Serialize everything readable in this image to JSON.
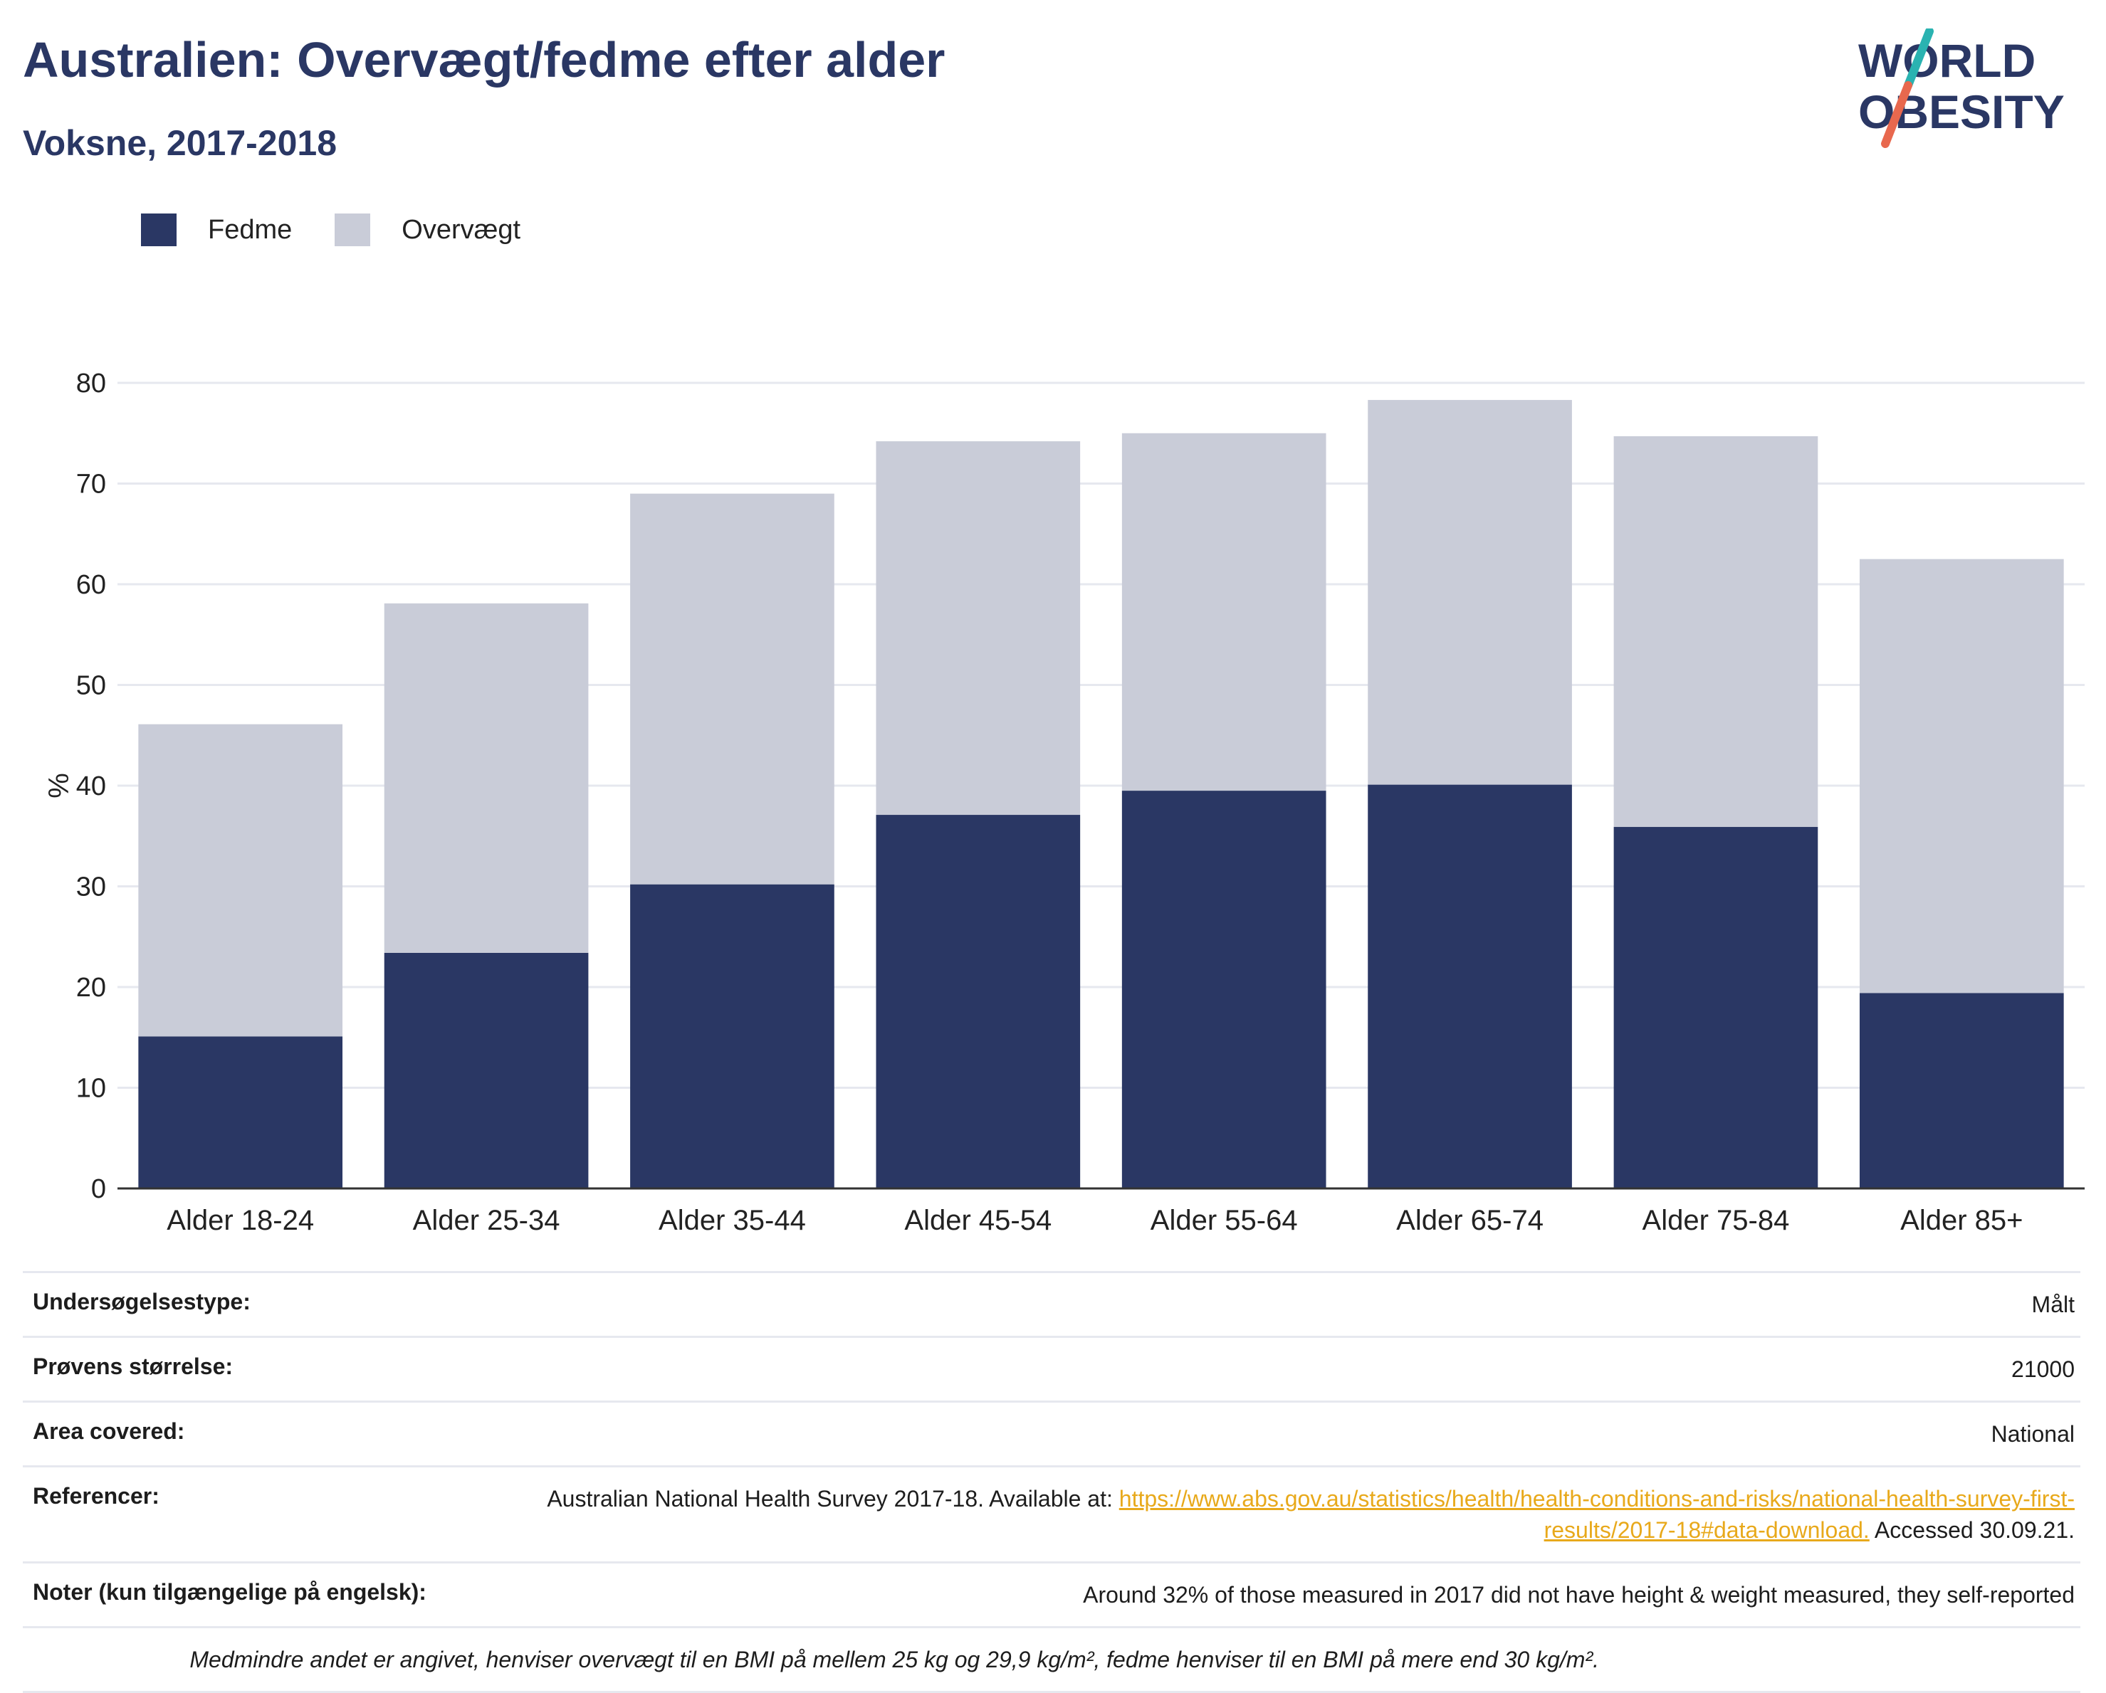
{
  "header": {
    "title": "Australien: Overvægt/fedme efter alder",
    "subtitle": "Voksne, 2017-2018"
  },
  "logo": {
    "line1": "WORLD",
    "line2": "OBESITY",
    "colors": {
      "text": "#2a3764",
      "slash_top": "#2ab3b1",
      "slash_bottom": "#e8684e"
    }
  },
  "legend": {
    "items": [
      {
        "label": "Fedme",
        "color": "#2a3764"
      },
      {
        "label": "Overvægt",
        "color": "#c9ccd8"
      }
    ]
  },
  "chart_data": {
    "type": "bar",
    "stacked": true,
    "categories": [
      "Alder 18-24",
      "Alder 25-34",
      "Alder 35-44",
      "Alder 45-54",
      "Alder 55-64",
      "Alder 65-74",
      "Alder 75-84",
      "Alder 85+"
    ],
    "series": [
      {
        "name": "Fedme",
        "color": "#2a3764",
        "values": [
          15.1,
          23.4,
          30.2,
          37.1,
          39.5,
          40.1,
          35.9,
          19.4
        ]
      },
      {
        "name": "Overvægt",
        "color": "#c9ccd8",
        "values": [
          31.0,
          34.7,
          38.8,
          37.1,
          35.5,
          38.2,
          38.8,
          43.1
        ]
      }
    ],
    "ylabel": "%",
    "xlabel": "",
    "ylim": [
      0,
      80
    ],
    "yticks": [
      0,
      10,
      20,
      30,
      40,
      50,
      60,
      70,
      80
    ],
    "grid": true,
    "legend_position": "top-left"
  },
  "meta": {
    "rows": [
      {
        "key": "Undersøgelsestype:",
        "value": "Målt"
      },
      {
        "key": "Prøvens størrelse:",
        "value": "21000"
      },
      {
        "key": "Area covered:",
        "value": "National"
      },
      {
        "key": "Referencer:",
        "value_prefix": "Australian National Health Survey 2017-18. Available at: ",
        "link": "https://www.abs.gov.au/statistics/health/health-conditions-and-risks/national-health-survey-first-results/2017-18#data-download.",
        "value_suffix": " Accessed 30.09.21."
      },
      {
        "key": "Noter (kun tilgængelige på engelsk):",
        "value": "Around 32% of those measured in 2017 did not have height & weight measured, they self-reported"
      }
    ],
    "footnote": "Medmindre andet er angivet, henviser overvægt til en BMI på mellem 25 kg og 29,9 kg/m², fedme henviser til en BMI på mere end 30 kg/m²."
  }
}
